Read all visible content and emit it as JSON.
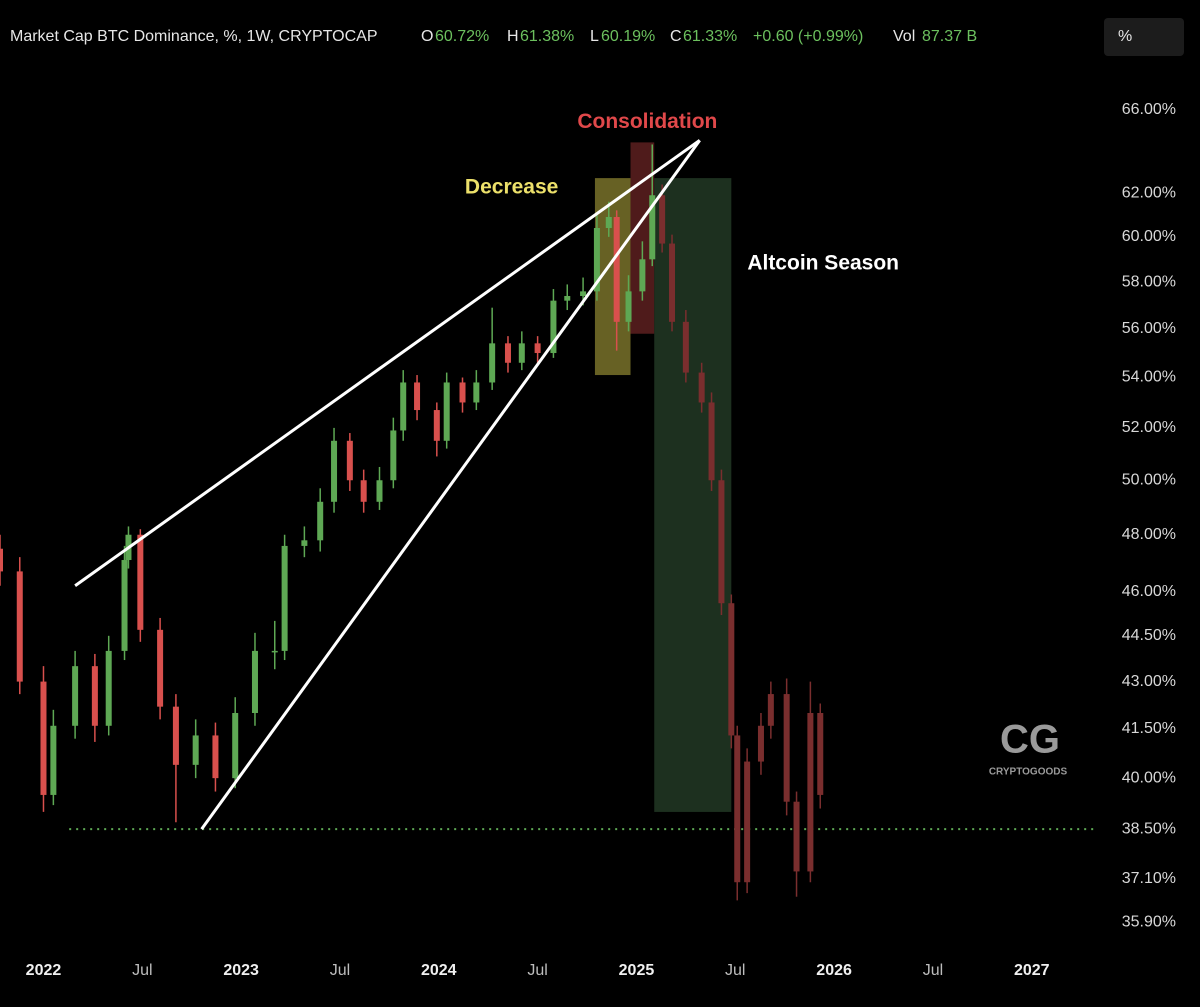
{
  "header": {
    "title": "Market Cap BTC Dominance, %, 1W, CRYPTOCAP",
    "open_label": "O",
    "open": "60.72%",
    "high_label": "H",
    "high": "61.38%",
    "low_label": "L",
    "low": "60.19%",
    "close_label": "C",
    "close": "61.33%",
    "change": "+0.60 (+0.99%)",
    "vol_label": "Vol",
    "vol": "87.37 B",
    "scale_button": "%"
  },
  "watermark": {
    "logo": "CG",
    "text": "CRYPTOGOODS"
  },
  "chart_data": {
    "type": "candlestick",
    "log_scale": true,
    "xlim": [
      2021.78,
      2027.32
    ],
    "xticks": [
      2022,
      {
        "value": 2022.5,
        "label": "Jul"
      },
      2023,
      {
        "value": 2023.5,
        "label": "Jul"
      },
      2024,
      {
        "value": 2024.5,
        "label": "Jul"
      },
      2025,
      {
        "value": 2025.5,
        "label": "Jul"
      },
      2026,
      {
        "value": 2026.5,
        "label": "Jul"
      },
      2027
    ],
    "ylim": [
      35.3,
      68.5
    ],
    "yticks": [
      {
        "value": 66,
        "label": "66.00%"
      },
      {
        "value": 62,
        "label": "62.00%"
      },
      {
        "value": 60,
        "label": "60.00%"
      },
      {
        "value": 58,
        "label": "58.00%"
      },
      {
        "value": 56,
        "label": "56.00%"
      },
      {
        "value": 54,
        "label": "54.00%"
      },
      {
        "value": 52,
        "label": "52.00%"
      },
      {
        "value": 50,
        "label": "50.00%"
      },
      {
        "value": 48,
        "label": "48.00%"
      },
      {
        "value": 46,
        "label": "46.00%"
      },
      {
        "value": 44.5,
        "label": "44.50%"
      },
      {
        "value": 43,
        "label": "43.00%"
      },
      {
        "value": 41.5,
        "label": "41.50%"
      },
      {
        "value": 40,
        "label": "40.00%"
      },
      {
        "value": 38.5,
        "label": "38.50%"
      },
      {
        "value": 37.1,
        "label": "37.10%"
      },
      {
        "value": 35.9,
        "label": "35.90%"
      }
    ],
    "candles": {
      "up_color": "#5ea854",
      "down_color": "#d8504d",
      "x": [
        2021.78,
        2021.88,
        2022.0,
        2022.05,
        2022.16,
        2022.26,
        2022.33,
        2022.41,
        2022.43,
        2022.49,
        2022.59,
        2022.67,
        2022.77,
        2022.87,
        2022.97,
        2023.07,
        2023.17,
        2023.22,
        2023.32,
        2023.4,
        2023.47,
        2023.55,
        2023.62,
        2023.7,
        2023.77,
        2023.82,
        2023.89,
        2023.99,
        2024.04,
        2024.12,
        2024.19,
        2024.27,
        2024.35,
        2024.42,
        2024.5,
        2024.58,
        2024.65,
        2024.73,
        2024.8,
        2024.86,
        2024.9,
        2024.96,
        2025.03,
        2025.08
      ],
      "open": [
        47.5,
        46.7,
        43.0,
        39.5,
        41.6,
        43.5,
        41.6,
        44.0,
        47.1,
        48.0,
        44.7,
        42.2,
        40.4,
        41.3,
        40.0,
        42.0,
        44.0,
        44.0,
        47.6,
        47.8,
        49.2,
        51.5,
        50.0,
        49.2,
        50.0,
        51.9,
        53.8,
        52.7,
        51.5,
        53.8,
        53.0,
        53.8,
        55.4,
        54.6,
        55.4,
        55.0,
        57.2,
        57.4,
        57.6,
        60.4,
        60.9,
        56.3,
        57.6,
        59.0
      ],
      "high": [
        48.0,
        47.2,
        43.5,
        42.1,
        44.0,
        43.9,
        44.5,
        47.6,
        48.3,
        48.2,
        45.1,
        42.6,
        41.8,
        41.7,
        42.5,
        44.6,
        45.0,
        48.0,
        48.3,
        49.7,
        52.0,
        51.8,
        50.4,
        50.5,
        52.4,
        54.3,
        54.1,
        53.0,
        54.2,
        54.0,
        54.3,
        56.9,
        55.7,
        55.9,
        55.7,
        57.7,
        57.9,
        58.2,
        61.0,
        61.6,
        61.2,
        58.3,
        59.8,
        64.3
      ],
      "low": [
        46.2,
        42.6,
        39.0,
        39.2,
        41.2,
        41.1,
        41.3,
        43.7,
        46.8,
        44.3,
        41.8,
        38.7,
        40.0,
        39.6,
        39.7,
        41.6,
        43.4,
        43.7,
        47.2,
        47.4,
        48.8,
        49.6,
        48.8,
        48.9,
        49.7,
        51.5,
        52.3,
        50.9,
        51.2,
        52.6,
        52.7,
        53.5,
        54.2,
        54.3,
        54.6,
        54.8,
        56.8,
        57.0,
        57.2,
        60.0,
        55.1,
        55.9,
        57.2,
        58.7
      ],
      "close": [
        46.7,
        43.0,
        39.5,
        41.6,
        43.5,
        41.6,
        44.0,
        47.1,
        48.0,
        44.7,
        42.2,
        40.4,
        41.3,
        40.0,
        42.0,
        44.0,
        44.0,
        47.6,
        47.8,
        49.2,
        51.5,
        50.0,
        49.2,
        50.0,
        51.9,
        53.8,
        52.7,
        51.5,
        53.8,
        53.0,
        53.8,
        55.4,
        54.6,
        55.4,
        55.0,
        57.2,
        57.4,
        57.6,
        60.4,
        60.9,
        56.3,
        57.6,
        59.0,
        61.9
      ]
    },
    "projection": {
      "up_color": "#7a2e2e",
      "down_color": "#7a2e2e",
      "x": [
        2025.13,
        2025.18,
        2025.25,
        2025.33,
        2025.38,
        2025.43,
        2025.48,
        2025.51,
        2025.56,
        2025.63,
        2025.68,
        2025.76,
        2025.81,
        2025.88,
        2025.93
      ],
      "open": [
        61.9,
        59.7,
        56.3,
        54.2,
        53.0,
        50.0,
        45.6,
        41.3,
        37.0,
        40.5,
        41.6,
        42.6,
        39.3,
        37.3,
        42.0
      ],
      "high": [
        62.4,
        60.1,
        56.8,
        54.6,
        53.4,
        50.4,
        45.9,
        41.6,
        40.9,
        42.0,
        43.0,
        43.1,
        39.6,
        43.0,
        42.3
      ],
      "low": [
        59.3,
        55.9,
        53.8,
        52.6,
        49.6,
        45.2,
        40.9,
        36.5,
        36.7,
        40.1,
        41.2,
        38.9,
        36.6,
        37.0,
        39.1
      ],
      "close": [
        59.7,
        56.3,
        54.2,
        53.0,
        50.0,
        45.6,
        41.3,
        37.0,
        40.5,
        41.6,
        42.6,
        39.3,
        37.3,
        42.0,
        39.5
      ]
    },
    "zones": [
      {
        "label": "Decrease",
        "color": "#8a8230",
        "label_color": "#ece06a",
        "x": [
          2024.79,
          2024.97
        ],
        "y": [
          54.1,
          62.7
        ]
      },
      {
        "label": "Consolidation",
        "color": "#6a2424",
        "label_color": "#e0484a",
        "x": [
          2024.97,
          2025.09
        ],
        "y": [
          55.8,
          64.4
        ]
      },
      {
        "label": "Altcoin Season",
        "color": "#27402a",
        "label_color": "#ffffff",
        "x": [
          2025.09,
          2025.48
        ],
        "y": [
          39.0,
          62.7
        ]
      }
    ],
    "trend_lines": [
      {
        "x": [
          2022.16,
          2025.32
        ],
        "y": [
          46.2,
          64.5
        ]
      },
      {
        "x": [
          2022.8,
          2025.32
        ],
        "y": [
          38.5,
          64.5
        ]
      }
    ],
    "support_line": {
      "y": 38.5,
      "x": 2022.13,
      "color": "#5ea854"
    }
  }
}
